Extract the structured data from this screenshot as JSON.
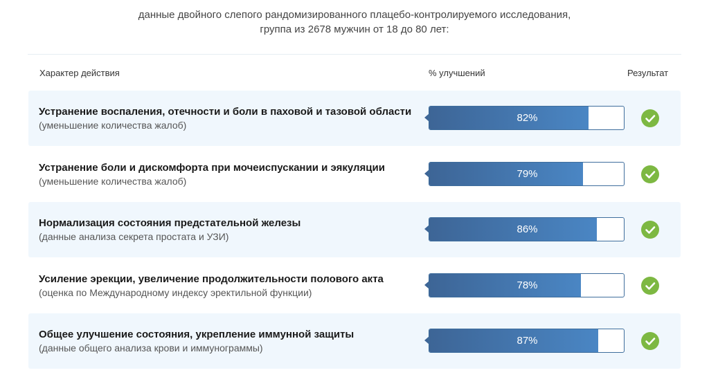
{
  "intro": {
    "line1": "данные двойного слепого рандомизированного плацебо-контролируемого исследования,",
    "line2": "группа из 2678 мужчин от 18 до 80 лет:"
  },
  "chart_data": {
    "type": "bar",
    "orientation": "horizontal",
    "columns": {
      "action": "Характер действия",
      "improvement": "% улучшений",
      "result": "Результат"
    },
    "xlim": [
      0,
      100
    ],
    "colors": {
      "bar": "#3d6596",
      "bar_end": "#4a86c4",
      "check": "#7db842",
      "row_shade": "#f0f7fd"
    },
    "rows": [
      {
        "title": "Устранение воспаления, отечности и боли в паховой и тазовой области",
        "subtitle": "(уменьшение количества жалоб)",
        "value": 82,
        "label": "82%",
        "result_icon": "check-icon"
      },
      {
        "title": "Устранение боли и дискомфорта при мочеиспускании и эякуляции",
        "subtitle": "(уменьшение количества жалоб)",
        "value": 79,
        "label": "79%",
        "result_icon": "check-icon"
      },
      {
        "title": "Нормализация состояния предстательной железы",
        "subtitle": "(данные анализа секрета простата и УЗИ)",
        "value": 86,
        "label": "86%",
        "result_icon": "check-icon"
      },
      {
        "title": "Усиление эрекции, увеличение продолжительности полового акта",
        "subtitle": "(оценка по Международному индексу эректильной функции)",
        "value": 78,
        "label": "78%",
        "result_icon": "check-icon"
      },
      {
        "title": "Общее улучшение состояния, укрепление иммунной защиты",
        "subtitle": "(данные общего анализа крови и иммунограммы)",
        "value": 87,
        "label": "87%",
        "result_icon": "check-icon"
      }
    ]
  }
}
